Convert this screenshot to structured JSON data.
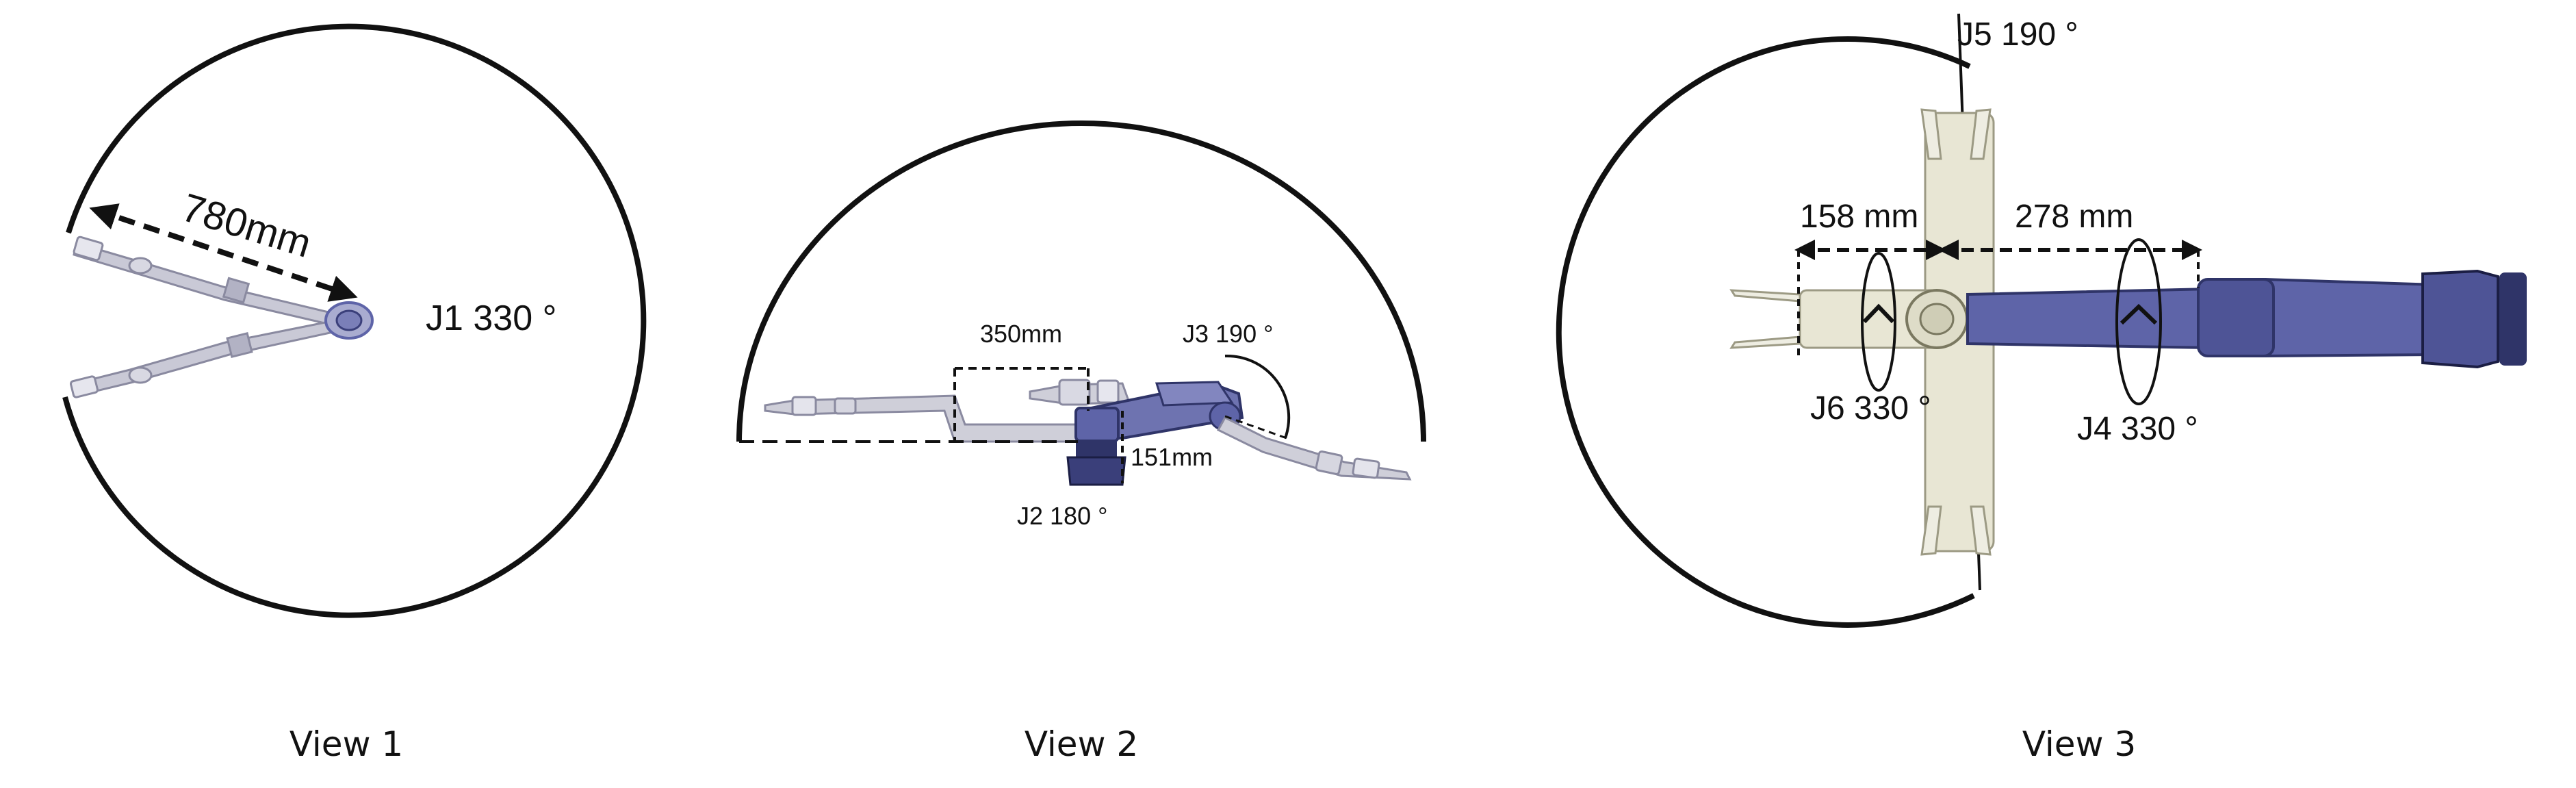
{
  "colors": {
    "line": "#111111",
    "light_link": "#c9c9d6",
    "light_link_edge": "#8a8aa0",
    "dark_link": "#5e64a8",
    "dark_link_edge": "#2f3468",
    "cream_link": "#e8e6d4",
    "cream_edge": "#9c9a84"
  },
  "view1": {
    "caption": "View 1",
    "reach_label": "780mm",
    "joint_label": "J1 330 °"
  },
  "view2": {
    "caption": "View 2",
    "offset_label": "350mm",
    "height_label": "151mm",
    "j3_label": "J3 190 °",
    "j2_label": "J2 180 °"
  },
  "view3": {
    "caption": "View 3",
    "j5_label": "J5 190 °",
    "left_length_label": "158 mm",
    "right_length_label": "278 mm",
    "j6_label": "J6 330 °",
    "j4_label": "J4 330 °"
  }
}
